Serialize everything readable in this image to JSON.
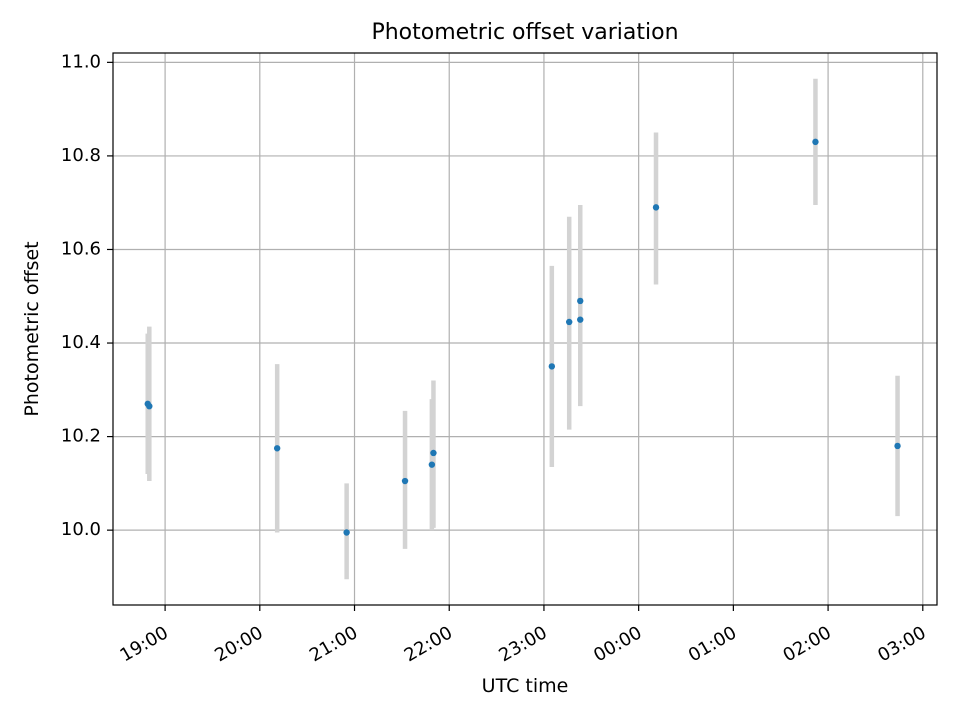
{
  "chart_data": {
    "type": "scatter",
    "title": "Photometric offset variation",
    "xlabel": "UTC time",
    "ylabel": "Photometric offset",
    "x_ticks": [
      "19:00",
      "20:00",
      "21:00",
      "22:00",
      "23:00",
      "00:00",
      "01:00",
      "02:00",
      "03:00"
    ],
    "x_ticks_hours": [
      19,
      20,
      21,
      22,
      23,
      24,
      25,
      26,
      27
    ],
    "y_ticks": [
      "10.0",
      "10.2",
      "10.4",
      "10.6",
      "10.8",
      "11.0"
    ],
    "xlim_hours": [
      18.45,
      27.15
    ],
    "ylim": [
      9.84,
      11.02
    ],
    "grid": true,
    "colors": {
      "marker": "#1f77b4",
      "errorbar": "#d3d3d3",
      "grid": "#b0b0b0"
    },
    "points": [
      {
        "time": "18:49",
        "y": 10.27,
        "err_low": 10.12,
        "err_high": 10.42
      },
      {
        "time": "18:50",
        "y": 10.265,
        "err_low": 10.105,
        "err_high": 10.435
      },
      {
        "time": "20:11",
        "y": 10.175,
        "err_low": 9.995,
        "err_high": 10.355
      },
      {
        "time": "20:55",
        "y": 9.995,
        "err_low": 9.895,
        "err_high": 10.1
      },
      {
        "time": "21:32",
        "y": 10.105,
        "err_low": 9.96,
        "err_high": 10.255
      },
      {
        "time": "21:49",
        "y": 10.14,
        "err_low": 10.0,
        "err_high": 10.28
      },
      {
        "time": "21:50",
        "y": 10.165,
        "err_low": 10.005,
        "err_high": 10.32
      },
      {
        "time": "23:05",
        "y": 10.35,
        "err_low": 10.135,
        "err_high": 10.565
      },
      {
        "time": "23:16",
        "y": 10.445,
        "err_low": 10.215,
        "err_high": 10.67
      },
      {
        "time": "23:23",
        "y": 10.45,
        "err_low": 10.265,
        "err_high": 10.635
      },
      {
        "time": "23:23",
        "y": 10.49,
        "err_low": 10.285,
        "err_high": 10.695
      },
      {
        "time": "00:11",
        "y": 10.69,
        "err_low": 10.525,
        "err_high": 10.85
      },
      {
        "time": "01:52",
        "y": 10.83,
        "err_low": 10.695,
        "err_high": 10.965
      },
      {
        "time": "02:44",
        "y": 10.18,
        "err_low": 10.03,
        "err_high": 10.33
      }
    ]
  }
}
